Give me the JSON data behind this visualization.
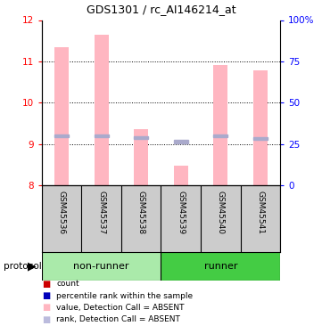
{
  "title": "GDS1301 / rc_AI146214_at",
  "samples": [
    "GSM45536",
    "GSM45537",
    "GSM45538",
    "GSM45539",
    "GSM45540",
    "GSM45541"
  ],
  "groups": [
    "non-runner",
    "non-runner",
    "non-runner",
    "runner",
    "runner",
    "runner"
  ],
  "group_colors": {
    "non-runner": "#AAEAAA",
    "runner": "#44CC44"
  },
  "values": [
    11.35,
    11.65,
    9.37,
    8.47,
    10.92,
    10.78
  ],
  "ranks": [
    9.2,
    9.2,
    9.15,
    9.06,
    9.2,
    9.13
  ],
  "ylim_left": [
    8,
    12
  ],
  "ylim_right": [
    0,
    100
  ],
  "yticks_left": [
    8,
    9,
    10,
    11,
    12
  ],
  "yticks_right": [
    0,
    25,
    50,
    75,
    100
  ],
  "bar_color": "#FFB6C1",
  "rank_color": "#AAAACC",
  "bar_width": 0.35,
  "legend_items": [
    {
      "label": "count",
      "color": "#CC0000"
    },
    {
      "label": "percentile rank within the sample",
      "color": "#0000BB"
    },
    {
      "label": "value, Detection Call = ABSENT",
      "color": "#FFB6C1"
    },
    {
      "label": "rank, Detection Call = ABSENT",
      "color": "#BBBBDD"
    }
  ]
}
